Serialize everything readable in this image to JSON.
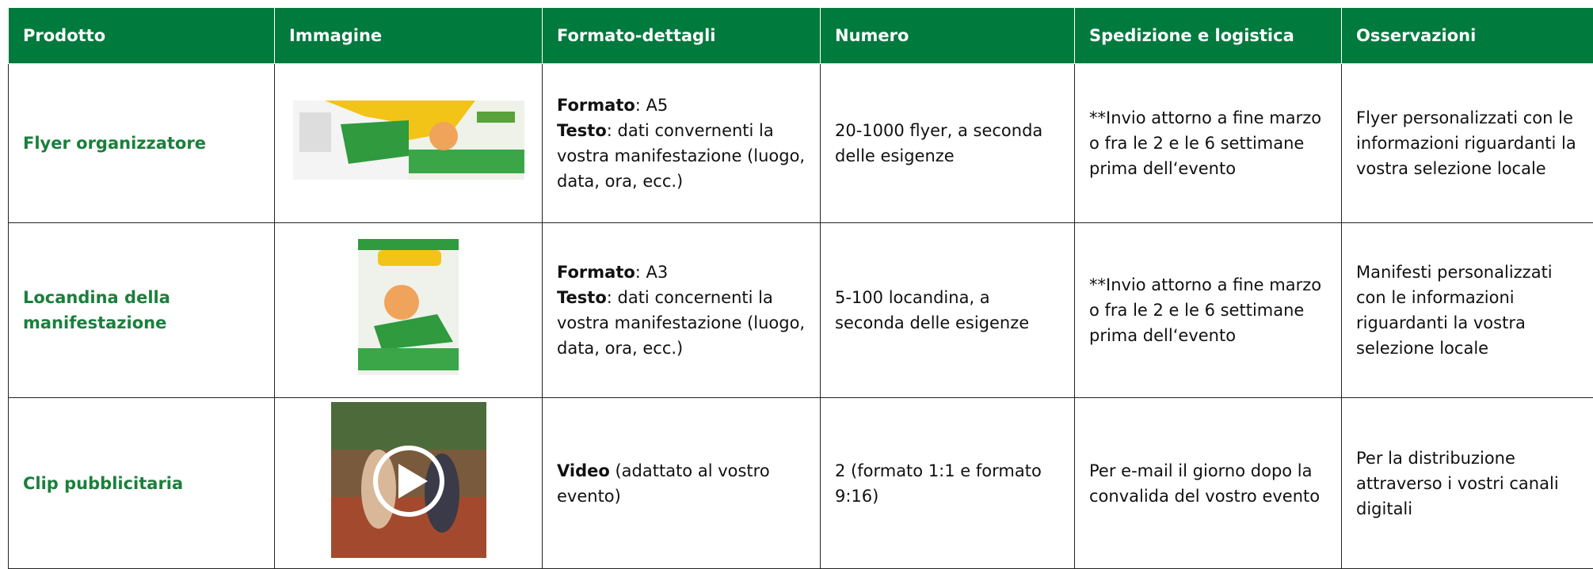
{
  "header": [
    "Prodotto",
    "Immagine",
    "Formato-dettagli",
    "Numero",
    "Spedizione e logistica",
    "Osservazioni"
  ],
  "rows": [
    {
      "product": "Flyer organizzatore",
      "format": [
        {
          "label": "Formato",
          "text": ": A5"
        },
        {
          "label": "Testo",
          "text": ": dati convernenti la vostra manifestazione (luogo, data, ora, ecc.)"
        }
      ],
      "number": "20-1000 flyer, a seconda delle esigenze",
      "shipping": "**Invio attorno a fine marzo o fra le 2 e le 6 settimane prima dell‘evento",
      "notes": "Flyer personalizzati con le informazioni riguardanti la vostra selezione locale"
    },
    {
      "product": "Locandina della manifestazione",
      "format": [
        {
          "label": "Formato",
          "text": ": A3"
        },
        {
          "label": "Testo",
          "text": ": dati concernenti la vostra manifestazione (luogo, data, ora, ecc.)"
        }
      ],
      "number": "5-100 locandina, a seconda delle esigenze",
      "shipping": "**Invio attorno a fine marzo o fra le 2 e le 6 settimane prima dell‘evento",
      "notes": "Manifesti personalizzati con le informazioni riguardanti la vostra selezione locale"
    },
    {
      "product": "Clip pubblicitaria",
      "format": [
        {
          "label": "Video",
          "text": " (adattato al vostro evento)"
        }
      ],
      "number": "2 (formato 1:1 e formato 9:16)",
      "shipping": "Per e-mail il giorno dopo la convalida del vostro evento",
      "notes": "Per la distribuzione attraverso i vostri canali digitali"
    }
  ]
}
